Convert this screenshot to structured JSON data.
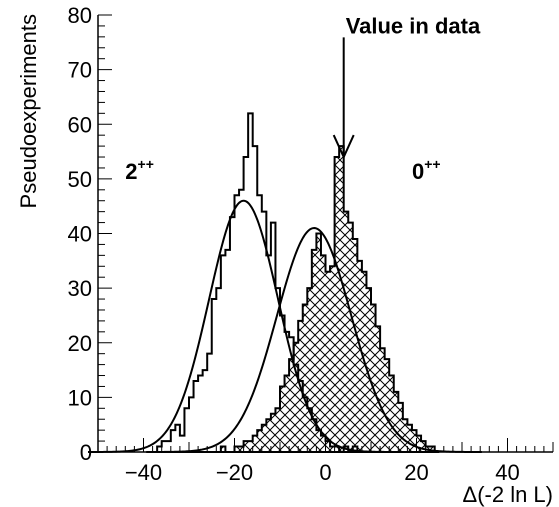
{
  "chart_data": {
    "type": "histogram",
    "xlabel": "Δ(-2 ln L)",
    "ylabel": "Pseudoexperiments",
    "xlim": [
      -50,
      50
    ],
    "ylim": [
      0,
      80
    ],
    "x_ticks": [
      -40,
      -20,
      0,
      20,
      40
    ],
    "x_tick_labels": [
      "−40",
      "−20",
      "0",
      "20",
      "40"
    ],
    "y_ticks": [
      0,
      10,
      20,
      30,
      40,
      50,
      60,
      70,
      80
    ],
    "y_tick_labels": [
      "0",
      "10",
      "20",
      "30",
      "40",
      "50",
      "60",
      "70",
      "80"
    ],
    "grid": false,
    "legend": "none",
    "annotations": [
      {
        "label": "Value in data",
        "x": 4,
        "arrow_from_y": 77,
        "arrow_to_y": 54
      },
      {
        "base": "2",
        "sup": "++",
        "x": -44,
        "y": 50
      },
      {
        "base": "0",
        "sup": "++",
        "x": 19,
        "y": 50
      }
    ],
    "series": [
      {
        "name": "2++",
        "style": "open",
        "bins_x": [
          -37,
          -36,
          -35,
          -34,
          -33,
          -32,
          -31,
          -30,
          -29,
          -28,
          -27,
          -26,
          -25,
          -24,
          -23,
          -22,
          -21,
          -20,
          -19,
          -18,
          -17,
          -16,
          -15,
          -14,
          -13,
          -12,
          -11,
          -10,
          -9,
          -8,
          -7,
          -6,
          -5,
          -4,
          -3,
          -2,
          -1,
          0,
          1,
          2,
          3,
          4,
          5,
          6,
          7
        ],
        "values": [
          1,
          2,
          2,
          4,
          5,
          3,
          8,
          10,
          13,
          14,
          15,
          18,
          28,
          30,
          36,
          37,
          43,
          47,
          48,
          54,
          62,
          56,
          47,
          44,
          36,
          42,
          30,
          25,
          22,
          21,
          16,
          13,
          10,
          8,
          6,
          4,
          3,
          2,
          1,
          1,
          0,
          1,
          0,
          1,
          0
        ],
        "fit": {
          "amplitude": 46,
          "mean": -18,
          "sigma": 7.6
        }
      },
      {
        "name": "0++",
        "style": "crosshatch",
        "bins_x": [
          -25,
          -24,
          -23,
          -22,
          -21,
          -20,
          -19,
          -18,
          -17,
          -16,
          -15,
          -14,
          -13,
          -12,
          -11,
          -10,
          -9,
          -8,
          -7,
          -6,
          -5,
          -4,
          -3,
          -2,
          -1,
          0,
          1,
          2,
          3,
          4,
          5,
          6,
          7,
          8,
          9,
          10,
          11,
          12,
          13,
          14,
          15,
          16,
          17,
          18,
          19,
          20,
          21,
          22,
          23,
          24
        ],
        "values": [
          0,
          0,
          1,
          0,
          0,
          1,
          1,
          2,
          2,
          3,
          4,
          5,
          6,
          7,
          8,
          12,
          14,
          17,
          20,
          24,
          27,
          30,
          37,
          40,
          36,
          33,
          34,
          54,
          56,
          44,
          42,
          39,
          35,
          33,
          30,
          27,
          23,
          19,
          17,
          14,
          11,
          9,
          6,
          5,
          4,
          3,
          2,
          1,
          1,
          0
        ],
        "fit": {
          "amplitude": 41,
          "mean": -2.5,
          "sigma": 8.2
        }
      }
    ]
  }
}
